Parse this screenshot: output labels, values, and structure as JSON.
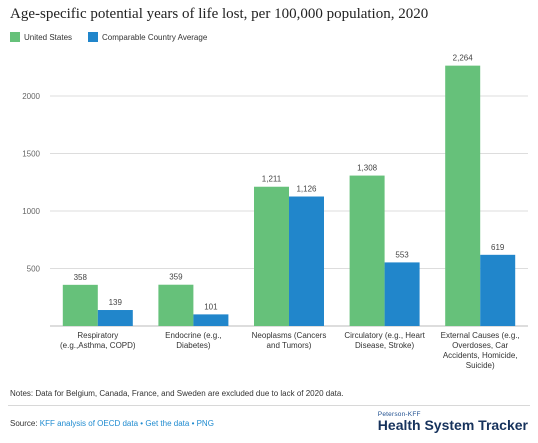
{
  "title": "Age-specific potential years of life lost, per 100,000 population, 2020",
  "legend": [
    {
      "label": "United States",
      "color": "#66c17a"
    },
    {
      "label": "Comparable Country Average",
      "color": "#2186cb"
    }
  ],
  "chart_data": {
    "type": "bar",
    "title": "Age-specific potential years of life lost, per 100,000 population, 2020",
    "xlabel": "",
    "ylabel": "",
    "ylim": [
      0,
      2400
    ],
    "yticks": [
      500,
      1000,
      1500,
      2000
    ],
    "grid": true,
    "legend_position": "top-left",
    "categories": [
      [
        "Respiratory",
        "(e.g.,Asthma, COPD)"
      ],
      [
        "Endocrine (e.g.,",
        "Diabetes)"
      ],
      [
        "Neoplasms (Cancers",
        "and Tumors)"
      ],
      [
        "Circulatory (e.g., Heart",
        "Disease, Stroke)"
      ],
      [
        "External Causes (e.g.,",
        "Overdoses, Car",
        "Accidents, Homicide,",
        "Suicide)"
      ]
    ],
    "series": [
      {
        "name": "United States",
        "color": "#66c17a",
        "values": [
          358,
          359,
          1211,
          1308,
          2264
        ],
        "labels": [
          "358",
          "359",
          "1,211",
          "1,308",
          "2,264"
        ]
      },
      {
        "name": "Comparable Country Average",
        "color": "#2186cb",
        "values": [
          139,
          101,
          1126,
          553,
          619
        ],
        "labels": [
          "139",
          "101",
          "1,126",
          "553",
          "619"
        ]
      }
    ]
  },
  "notes": "Notes: Data for Belgium, Canada, France, and Sweden are excluded due to lack of 2020 data.",
  "source": {
    "prefix": "Source: ",
    "analysis_link": "KFF analysis of OECD data",
    "sep1": " • ",
    "data_link": "Get the data",
    "sep2": " • ",
    "png_link": "PNG"
  },
  "brand": {
    "top": "Peterson-KFF",
    "main": "Health System Tracker"
  }
}
